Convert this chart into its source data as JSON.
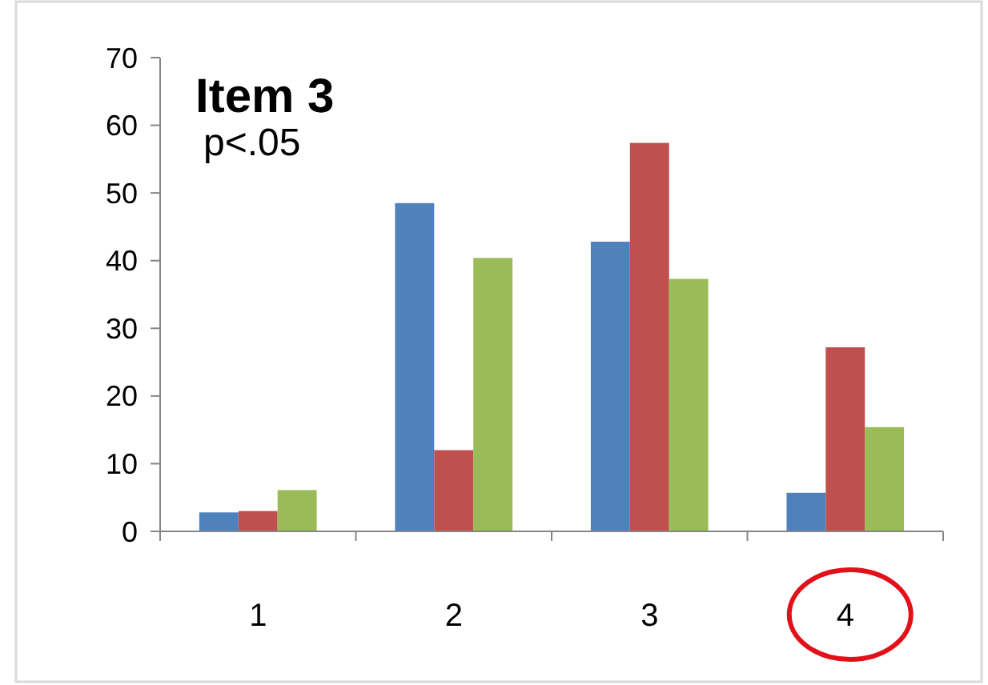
{
  "chart_data": {
    "type": "bar",
    "title": "Item 3",
    "subtitle": "p<.05",
    "categories": [
      "1",
      "2",
      "3",
      "4"
    ],
    "series": [
      {
        "color": "#4f81bd",
        "values": [
          2.8,
          48.5,
          42.8,
          5.7
        ]
      },
      {
        "color": "#c0504d",
        "values": [
          3,
          12,
          57.4,
          27.2
        ]
      },
      {
        "color": "#9bbb59",
        "values": [
          6.1,
          40.4,
          37.3,
          15.4
        ]
      }
    ],
    "ylim": [
      0,
      70
    ],
    "yticks": [
      0,
      10,
      20,
      30,
      40,
      50,
      60,
      70
    ],
    "grid": false
  }
}
